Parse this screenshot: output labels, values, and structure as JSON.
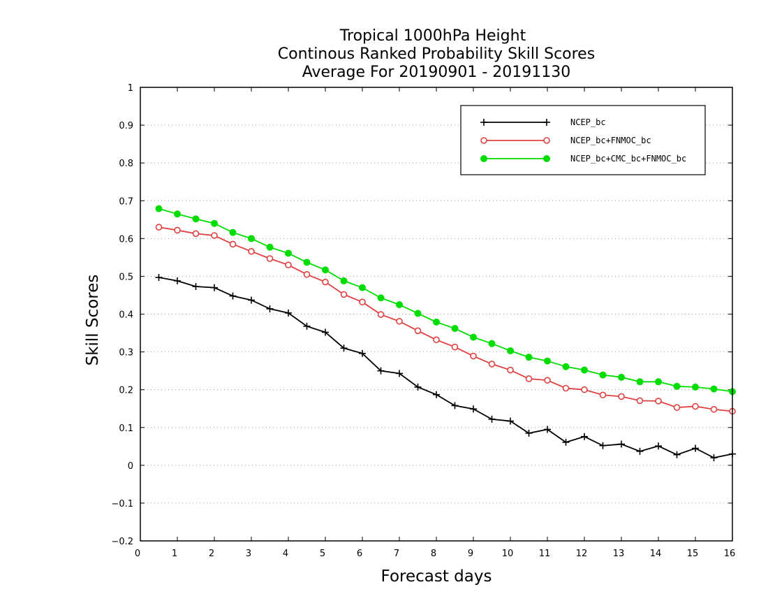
{
  "chart_data": {
    "type": "line",
    "title_lines": [
      "Tropical 1000hPa Height",
      "Continous Ranked Probability Skill Scores",
      "Average For 20190901 - 20191130"
    ],
    "xlabel": "Forecast days",
    "ylabel": "Skill Scores",
    "xlim": [
      0,
      16
    ],
    "ylim": [
      -0.2,
      1
    ],
    "x_ticks": [
      "0",
      "1",
      "2",
      "3",
      "4",
      "5",
      "6",
      "7",
      "8",
      "9",
      "10",
      "11",
      "12",
      "13",
      "14",
      "15",
      "16"
    ],
    "y_ticks": [
      "−0.2",
      "−0.1",
      "0",
      "0.1",
      "0.2",
      "0.3",
      "0.4",
      "0.5",
      "0.6",
      "0.7",
      "0.8",
      "0.9",
      "1"
    ],
    "grid": "horizontal dotted",
    "legend_position": "top-right",
    "x": [
      0.5,
      1,
      1.5,
      2,
      2.5,
      3,
      3.5,
      4,
      4.5,
      5,
      5.5,
      6,
      6.5,
      7,
      7.5,
      8,
      8.5,
      9,
      9.5,
      10,
      10.5,
      11,
      11.5,
      12,
      12.5,
      13,
      13.5,
      14,
      14.5,
      15,
      15.5,
      16
    ],
    "series": [
      {
        "name": "NCEP_bc",
        "color": "#000000",
        "marker": "plus",
        "values": [
          0.497,
          0.488,
          0.473,
          0.47,
          0.448,
          0.437,
          0.414,
          0.403,
          0.368,
          0.352,
          0.31,
          0.296,
          0.25,
          0.243,
          0.207,
          0.187,
          0.158,
          0.149,
          0.122,
          0.117,
          0.085,
          0.095,
          0.061,
          0.076,
          0.052,
          0.056,
          0.037,
          0.051,
          0.028,
          0.045,
          0.02,
          0.03
        ]
      },
      {
        "name": "NCEP_bc+FNMOC_bc",
        "color": "#e04040",
        "marker": "open-circle",
        "values": [
          0.63,
          0.622,
          0.613,
          0.608,
          0.585,
          0.566,
          0.547,
          0.53,
          0.505,
          0.485,
          0.452,
          0.432,
          0.399,
          0.381,
          0.356,
          0.332,
          0.313,
          0.289,
          0.268,
          0.252,
          0.229,
          0.225,
          0.204,
          0.2,
          0.186,
          0.182,
          0.171,
          0.17,
          0.153,
          0.156,
          0.148,
          0.143
        ]
      },
      {
        "name": "NCEP_bc+CMC_bc+FNMOC_bc",
        "color": "#00dd00",
        "marker": "filled-circle",
        "values": [
          0.679,
          0.665,
          0.652,
          0.64,
          0.616,
          0.6,
          0.577,
          0.561,
          0.537,
          0.517,
          0.488,
          0.47,
          0.443,
          0.425,
          0.402,
          0.379,
          0.362,
          0.339,
          0.322,
          0.303,
          0.286,
          0.276,
          0.261,
          0.252,
          0.239,
          0.233,
          0.221,
          0.221,
          0.209,
          0.207,
          0.202,
          0.195
        ]
      }
    ]
  }
}
